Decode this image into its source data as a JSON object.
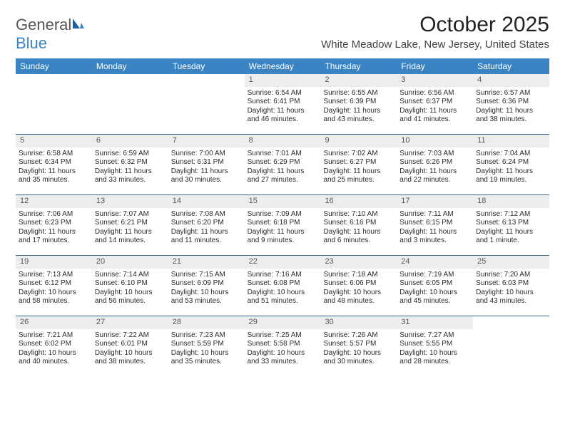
{
  "logo": {
    "text1": "General",
    "text2": "Blue"
  },
  "header": {
    "month_title": "October 2025",
    "location": "White Meadow Lake, New Jersey, United States"
  },
  "colors": {
    "header_bg": "#3a84c4",
    "header_text": "#ffffff",
    "daynum_bg": "#eceded",
    "row_border": "#3a6a9a"
  },
  "day_names": [
    "Sunday",
    "Monday",
    "Tuesday",
    "Wednesday",
    "Thursday",
    "Friday",
    "Saturday"
  ],
  "weeks": [
    [
      null,
      null,
      null,
      {
        "n": "1",
        "sr": "6:54 AM",
        "ss": "6:41 PM",
        "dl": "11 hours and 46 minutes."
      },
      {
        "n": "2",
        "sr": "6:55 AM",
        "ss": "6:39 PM",
        "dl": "11 hours and 43 minutes."
      },
      {
        "n": "3",
        "sr": "6:56 AM",
        "ss": "6:37 PM",
        "dl": "11 hours and 41 minutes."
      },
      {
        "n": "4",
        "sr": "6:57 AM",
        "ss": "6:36 PM",
        "dl": "11 hours and 38 minutes."
      }
    ],
    [
      {
        "n": "5",
        "sr": "6:58 AM",
        "ss": "6:34 PM",
        "dl": "11 hours and 35 minutes."
      },
      {
        "n": "6",
        "sr": "6:59 AM",
        "ss": "6:32 PM",
        "dl": "11 hours and 33 minutes."
      },
      {
        "n": "7",
        "sr": "7:00 AM",
        "ss": "6:31 PM",
        "dl": "11 hours and 30 minutes."
      },
      {
        "n": "8",
        "sr": "7:01 AM",
        "ss": "6:29 PM",
        "dl": "11 hours and 27 minutes."
      },
      {
        "n": "9",
        "sr": "7:02 AM",
        "ss": "6:27 PM",
        "dl": "11 hours and 25 minutes."
      },
      {
        "n": "10",
        "sr": "7:03 AM",
        "ss": "6:26 PM",
        "dl": "11 hours and 22 minutes."
      },
      {
        "n": "11",
        "sr": "7:04 AM",
        "ss": "6:24 PM",
        "dl": "11 hours and 19 minutes."
      }
    ],
    [
      {
        "n": "12",
        "sr": "7:06 AM",
        "ss": "6:23 PM",
        "dl": "11 hours and 17 minutes."
      },
      {
        "n": "13",
        "sr": "7:07 AM",
        "ss": "6:21 PM",
        "dl": "11 hours and 14 minutes."
      },
      {
        "n": "14",
        "sr": "7:08 AM",
        "ss": "6:20 PM",
        "dl": "11 hours and 11 minutes."
      },
      {
        "n": "15",
        "sr": "7:09 AM",
        "ss": "6:18 PM",
        "dl": "11 hours and 9 minutes."
      },
      {
        "n": "16",
        "sr": "7:10 AM",
        "ss": "6:16 PM",
        "dl": "11 hours and 6 minutes."
      },
      {
        "n": "17",
        "sr": "7:11 AM",
        "ss": "6:15 PM",
        "dl": "11 hours and 3 minutes."
      },
      {
        "n": "18",
        "sr": "7:12 AM",
        "ss": "6:13 PM",
        "dl": "11 hours and 1 minute."
      }
    ],
    [
      {
        "n": "19",
        "sr": "7:13 AM",
        "ss": "6:12 PM",
        "dl": "10 hours and 58 minutes."
      },
      {
        "n": "20",
        "sr": "7:14 AM",
        "ss": "6:10 PM",
        "dl": "10 hours and 56 minutes."
      },
      {
        "n": "21",
        "sr": "7:15 AM",
        "ss": "6:09 PM",
        "dl": "10 hours and 53 minutes."
      },
      {
        "n": "22",
        "sr": "7:16 AM",
        "ss": "6:08 PM",
        "dl": "10 hours and 51 minutes."
      },
      {
        "n": "23",
        "sr": "7:18 AM",
        "ss": "6:06 PM",
        "dl": "10 hours and 48 minutes."
      },
      {
        "n": "24",
        "sr": "7:19 AM",
        "ss": "6:05 PM",
        "dl": "10 hours and 45 minutes."
      },
      {
        "n": "25",
        "sr": "7:20 AM",
        "ss": "6:03 PM",
        "dl": "10 hours and 43 minutes."
      }
    ],
    [
      {
        "n": "26",
        "sr": "7:21 AM",
        "ss": "6:02 PM",
        "dl": "10 hours and 40 minutes."
      },
      {
        "n": "27",
        "sr": "7:22 AM",
        "ss": "6:01 PM",
        "dl": "10 hours and 38 minutes."
      },
      {
        "n": "28",
        "sr": "7:23 AM",
        "ss": "5:59 PM",
        "dl": "10 hours and 35 minutes."
      },
      {
        "n": "29",
        "sr": "7:25 AM",
        "ss": "5:58 PM",
        "dl": "10 hours and 33 minutes."
      },
      {
        "n": "30",
        "sr": "7:26 AM",
        "ss": "5:57 PM",
        "dl": "10 hours and 30 minutes."
      },
      {
        "n": "31",
        "sr": "7:27 AM",
        "ss": "5:55 PM",
        "dl": "10 hours and 28 minutes."
      },
      null
    ]
  ],
  "labels": {
    "sunrise": "Sunrise:",
    "sunset": "Sunset:",
    "daylight": "Daylight:"
  }
}
